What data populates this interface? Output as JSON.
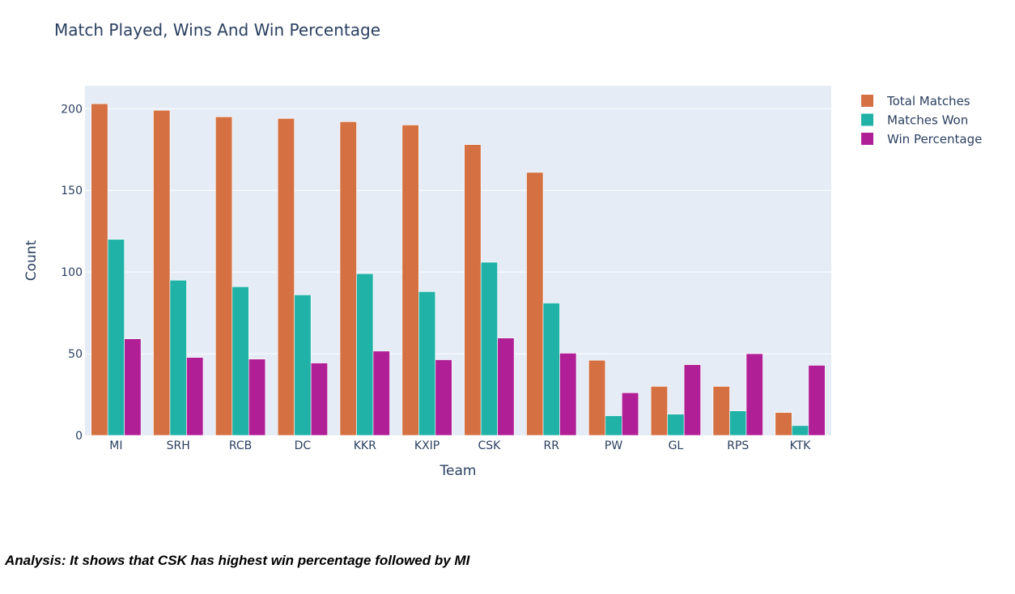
{
  "chart_data": {
    "type": "bar",
    "title": "Match Played, Wins And Win Percentage",
    "xlabel": "Team",
    "ylabel": "Count",
    "ylim": [
      0,
      214
    ],
    "yticks": [
      0,
      50,
      100,
      150,
      200
    ],
    "grid": true,
    "legend_position": "top-right",
    "categories": [
      "MI",
      "SRH",
      "RCB",
      "DC",
      "KKR",
      "KXIP",
      "CSK",
      "RR",
      "PW",
      "GL",
      "RPS",
      "KTK"
    ],
    "series": [
      {
        "name": "Total Matches",
        "color": "#d47041",
        "values": [
          203,
          199,
          195,
          194,
          192,
          190,
          178,
          161,
          46,
          30,
          30,
          14
        ]
      },
      {
        "name": "Matches Won",
        "color": "#20b2a6",
        "values": [
          120,
          95,
          91,
          86,
          99,
          88,
          106,
          81,
          12,
          13,
          15,
          6
        ]
      },
      {
        "name": "Win Percentage",
        "color": "#b01f96",
        "values": [
          59.1,
          47.7,
          46.7,
          44.3,
          51.6,
          46.3,
          59.6,
          50.3,
          26.1,
          43.3,
          50.0,
          42.9
        ]
      }
    ]
  },
  "analysis": "Analysis: It shows that CSK has highest win percentage followed by MI"
}
